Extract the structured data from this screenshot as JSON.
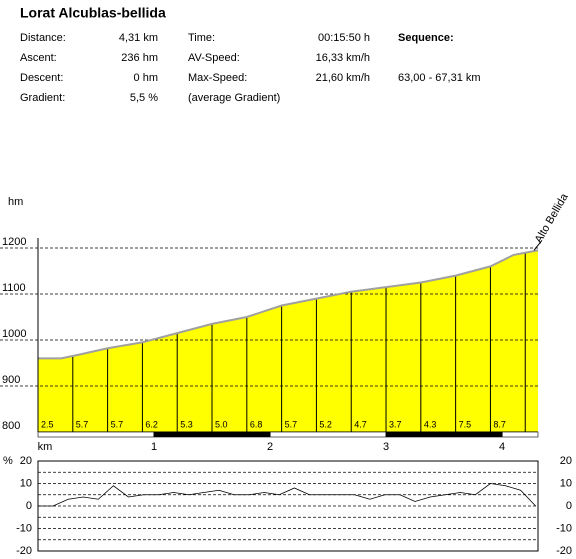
{
  "header": {
    "title": "Lorat Alcublas-bellida",
    "rows": [
      [
        "Distance:",
        "4,31 km",
        "Time:",
        "00:15:50 h",
        "Sequence:"
      ],
      [
        "Ascent:",
        "236 hm",
        "AV-Speed:",
        "16,33 km/h"
      ],
      [
        "Descent:",
        "0 hm",
        "Max-Speed:",
        "21,60 km/h",
        "63,00 - 67,31 km"
      ],
      [
        "Gradient:",
        "5,5 %",
        "(average Gradient)"
      ]
    ]
  },
  "chart_data": [
    {
      "type": "area",
      "y_label": "hm",
      "x_label": "km",
      "annotation": "Alto Bellida",
      "x": [
        0,
        0.2,
        0.35,
        0.6,
        0.9,
        1.2,
        1.5,
        1.8,
        2.1,
        2.4,
        2.7,
        3.0,
        3.3,
        3.6,
        3.9,
        4.1,
        4.31
      ],
      "values": [
        960,
        960,
        968,
        982,
        995,
        1015,
        1035,
        1050,
        1075,
        1090,
        1105,
        1115,
        1125,
        1140,
        1160,
        1185,
        1195
      ],
      "color": "#ffff00",
      "line_color": "#a0a0a0",
      "segment_bounds": [
        0,
        0.3,
        0.6,
        0.9,
        1.2,
        1.5,
        1.8,
        2.1,
        2.4,
        2.7,
        3.0,
        3.3,
        3.6,
        3.9,
        4.2
      ],
      "segment_labels": [
        "2.5",
        "5.7",
        "5.7",
        "6.2",
        "5.3",
        "5.0",
        "6.8",
        "5.7",
        "5.2",
        "4.7",
        "3.7",
        "4.3",
        "7.5",
        "8.7"
      ],
      "xlim": [
        0,
        4.31
      ],
      "xticks": [
        1,
        2,
        3,
        4
      ],
      "ylim": [
        800,
        1200
      ],
      "yticks": [
        800,
        900,
        1000,
        1100,
        1200
      ],
      "grid": true
    },
    {
      "type": "line",
      "y_label": "%",
      "x": [
        0,
        0.13,
        0.26,
        0.39,
        0.52,
        0.65,
        0.78,
        0.91,
        1.04,
        1.17,
        1.3,
        1.43,
        1.56,
        1.69,
        1.82,
        1.95,
        2.08,
        2.21,
        2.34,
        2.47,
        2.6,
        2.73,
        2.86,
        2.99,
        3.12,
        3.25,
        3.38,
        3.51,
        3.64,
        3.77,
        3.9,
        4.03,
        4.16,
        4.29
      ],
      "values": [
        0,
        0,
        3,
        4,
        3,
        9,
        4,
        5,
        5,
        6,
        5,
        6,
        7,
        5,
        5,
        6,
        5,
        8,
        5,
        5,
        5,
        5,
        3,
        5,
        5,
        2,
        4,
        5,
        6,
        5,
        10,
        9,
        7,
        0
      ],
      "color": "#000000",
      "xlim": [
        0,
        4.31
      ],
      "ylim": [
        -20,
        20
      ],
      "yticks": [
        -20,
        -10,
        0,
        10,
        20
      ],
      "ygrid": [
        -15,
        -10,
        -5,
        0,
        5,
        10,
        15
      ],
      "grid": true
    }
  ]
}
